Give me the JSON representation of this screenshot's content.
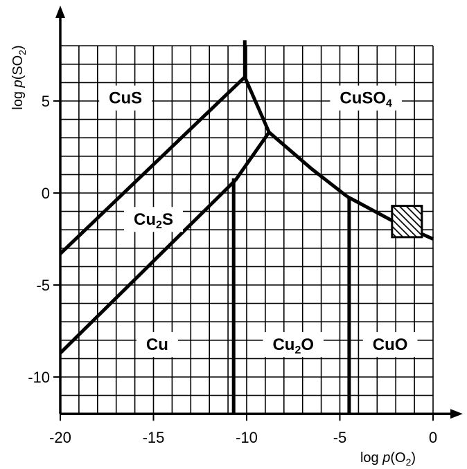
{
  "chart_data": {
    "type": "phase-diagram",
    "title": "",
    "xlabel": {
      "prefix": "log ",
      "var": "p",
      "open": "(O",
      "sub": "2",
      "close": ")"
    },
    "ylabel": {
      "prefix": "log ",
      "var": "p",
      "open": "(SO",
      "sub": "2",
      "close": ")"
    },
    "xlim": [
      -20,
      1.5
    ],
    "ylim": [
      -12,
      8.5
    ],
    "grid": true,
    "grid_step": 1,
    "xticks": [
      {
        "value": -20,
        "label": "-20"
      },
      {
        "value": -15,
        "label": "-15"
      },
      {
        "value": -10,
        "label": "-10"
      },
      {
        "value": -5,
        "label": "-5"
      },
      {
        "value": 0,
        "label": "0"
      }
    ],
    "yticks": [
      {
        "value": -10,
        "label": "-10"
      },
      {
        "value": -5,
        "label": "-5"
      },
      {
        "value": 0,
        "label": "0"
      },
      {
        "value": 5,
        "label": "5"
      }
    ],
    "boundaries": [
      {
        "name": "CuS / Cu2S",
        "points": [
          [
            -20,
            -3.3
          ],
          [
            -10.1,
            6.3
          ]
        ]
      },
      {
        "name": "CuS / CuSO4",
        "points": [
          [
            -10.1,
            8.3
          ],
          [
            -10.1,
            6.3
          ]
        ]
      },
      {
        "name": "Cu2S / CuSO4",
        "points": [
          [
            -10.1,
            6.3
          ],
          [
            -8.8,
            3.3
          ]
        ]
      },
      {
        "name": "Cu / Cu2S",
        "points": [
          [
            -20,
            -8.7
          ],
          [
            -10.6,
            0.7
          ]
        ]
      },
      {
        "name": "Cu2S / Cu2O",
        "points": [
          [
            -10.6,
            0.7
          ],
          [
            -8.8,
            3.3
          ]
        ]
      },
      {
        "name": "Cu2O / CuSO4",
        "points": [
          [
            -8.8,
            3.3
          ],
          [
            -6.5,
            1.3
          ],
          [
            -4.6,
            -0.2
          ]
        ]
      },
      {
        "name": "CuO / CuSO4",
        "points": [
          [
            -4.6,
            -0.2
          ],
          [
            -2.2,
            -1.5
          ],
          [
            0,
            -2.5
          ]
        ]
      },
      {
        "name": "Cu / Cu2O",
        "points": [
          [
            -10.7,
            -12
          ],
          [
            -10.7,
            0.8
          ]
        ]
      },
      {
        "name": "Cu2O / CuO",
        "points": [
          [
            -4.5,
            -12
          ],
          [
            -4.5,
            -0.2
          ]
        ]
      }
    ],
    "regions": [
      {
        "label": "CuS",
        "parts": [
          {
            "t": "CuS"
          }
        ],
        "x": -16.5,
        "y": 5.2
      },
      {
        "label": "CuSO4",
        "parts": [
          {
            "t": "CuSO"
          },
          {
            "t": "4",
            "sub": true
          }
        ],
        "x": -3.6,
        "y": 5.2
      },
      {
        "label": "Cu2S",
        "parts": [
          {
            "t": "Cu"
          },
          {
            "t": "2",
            "sub": true
          },
          {
            "t": "S"
          }
        ],
        "x": -15.0,
        "y": -1.4
      },
      {
        "label": "Cu",
        "parts": [
          {
            "t": "Cu"
          }
        ],
        "x": -14.8,
        "y": -8.2
      },
      {
        "label": "Cu2O",
        "parts": [
          {
            "t": "Cu"
          },
          {
            "t": "2",
            "sub": true
          },
          {
            "t": "O"
          }
        ],
        "x": -7.5,
        "y": -8.2
      },
      {
        "label": "CuO",
        "parts": [
          {
            "t": "CuO"
          }
        ],
        "x": -2.3,
        "y": -8.2
      }
    ],
    "hatched_box": {
      "x": [
        -2.2,
        -0.6
      ],
      "y": [
        -2.4,
        -0.7
      ]
    }
  }
}
